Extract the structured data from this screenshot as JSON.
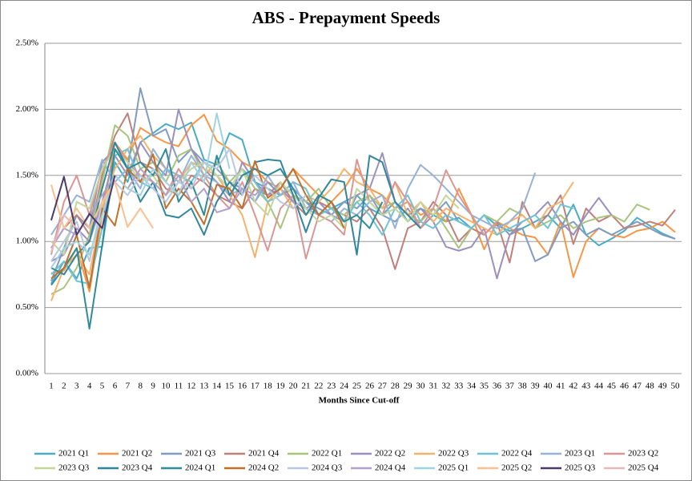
{
  "chart_data": {
    "type": "line",
    "title": "ABS - Prepayment Speeds",
    "x_label": "Months Since Cut-off",
    "categories": [
      1,
      2,
      3,
      4,
      5,
      6,
      7,
      8,
      9,
      10,
      11,
      12,
      13,
      14,
      15,
      16,
      17,
      18,
      19,
      20,
      21,
      22,
      23,
      24,
      25,
      26,
      27,
      28,
      29,
      30,
      31,
      32,
      33,
      34,
      35,
      36,
      37,
      38,
      39,
      40,
      41,
      42,
      43,
      44,
      45,
      46,
      47,
      48,
      49,
      50
    ],
    "ylim": [
      0,
      2.5
    ],
    "yticks": [
      {
        "value": 0,
        "label": "0.00%"
      },
      {
        "value": 0.5,
        "label": "0.50%"
      },
      {
        "value": 1,
        "label": "1.00%"
      },
      {
        "value": 1.5,
        "label": "1.50%"
      },
      {
        "value": 2,
        "label": "2.00%"
      },
      {
        "value": 2.5,
        "label": "2.50%"
      }
    ],
    "grid": true,
    "legend": "bottom",
    "series": [
      {
        "name": "2021 Q1",
        "color": "#4bacc6",
        "values": [
          0.68,
          0.85,
          0.72,
          0.95,
          0.96,
          1.6,
          1.45,
          1.75,
          1.82,
          1.89,
          1.85,
          1.9,
          1.62,
          1.58,
          1.82,
          1.77,
          1.45,
          1.4,
          1.35,
          1.4,
          1.3,
          1.2,
          1.25,
          1.3,
          1.35,
          1.25,
          1.2,
          1.3,
          1.15,
          1.25,
          1.2,
          1.15,
          1.18,
          1.1,
          1.2,
          1.12,
          1.08,
          1.1,
          1.15,
          1.2,
          1.1,
          1.28,
          1.05,
          0.97,
          1.02,
          1.08,
          1.18,
          1.12,
          1.06,
          1.02
        ]
      },
      {
        "name": "2021 Q2",
        "color": "#f79646",
        "values": [
          0.76,
          0.78,
          0.95,
          0.62,
          1.2,
          1.75,
          1.62,
          1.86,
          1.8,
          1.75,
          1.72,
          1.88,
          1.96,
          1.76,
          1.7,
          1.6,
          1.55,
          1.45,
          1.4,
          1.55,
          1.45,
          1.35,
          1.3,
          1.4,
          1.55,
          1.4,
          1.35,
          1.25,
          1.3,
          1.2,
          1.25,
          1.15,
          1.4,
          1.2,
          0.94,
          1.15,
          1.1,
          1.05,
          1.03,
          0.9,
          1.15,
          0.73,
          1.0,
          1.1,
          1.05,
          1.03,
          1.08,
          1.1,
          1.15,
          1.07
        ]
      },
      {
        "name": "2021 Q3",
        "color": "#7f9bc2",
        "values": [
          0.7,
          0.95,
          1.2,
          1.1,
          1.6,
          1.7,
          1.55,
          2.16,
          1.8,
          1.85,
          1.6,
          1.7,
          1.6,
          1.55,
          1.45,
          1.4,
          1.3,
          1.45,
          1.35,
          1.4,
          1.3,
          1.25,
          1.2,
          1.3,
          1.25,
          1.35,
          1.2,
          1.15,
          1.25,
          1.1,
          1.2,
          1.3,
          1.15,
          1.1,
          1.2,
          1.15,
          1.05,
          1.1,
          0.85,
          0.9,
          1.1,
          1.15,
          1.05,
          1.1,
          1.05,
          1.1,
          1.15,
          1.1,
          1.05,
          1.02
        ]
      },
      {
        "name": "2021 Q4",
        "color": "#c0807a",
        "values": [
          0.95,
          1.1,
          1.2,
          1.05,
          1.5,
          1.8,
          1.97,
          1.6,
          1.55,
          1.4,
          1.35,
          1.5,
          1.45,
          1.35,
          1.3,
          1.25,
          1.4,
          1.35,
          1.45,
          1.3,
          1.2,
          1.3,
          1.25,
          1.2,
          1.15,
          1.25,
          1.1,
          0.79,
          1.1,
          1.15,
          1.3,
          1.2,
          1.0,
          1.1,
          1.05,
          1.15,
          0.84,
          1.3,
          1.1,
          1.2,
          1.35,
          0.98,
          1.25,
          1.15,
          1.2,
          1.1,
          1.12,
          1.15,
          1.12,
          1.24
        ]
      },
      {
        "name": "2022 Q1",
        "color": "#a9c47f",
        "values": [
          0.6,
          0.65,
          0.8,
          1.05,
          1.45,
          1.88,
          1.8,
          1.55,
          1.6,
          1.45,
          1.65,
          1.7,
          1.5,
          1.6,
          1.45,
          1.55,
          1.4,
          1.3,
          1.1,
          1.35,
          1.3,
          1.4,
          1.25,
          1.2,
          1.3,
          1.35,
          1.25,
          1.3,
          1.2,
          1.15,
          1.25,
          1.1,
          0.95,
          1.1,
          1.2,
          1.15,
          1.25,
          1.2,
          1.1,
          1.15,
          1.2,
          1.1,
          1.15,
          1.18,
          1.2,
          1.15,
          1.28,
          1.24,
          null,
          null
        ]
      },
      {
        "name": "2022 Q2",
        "color": "#9b8fbf",
        "values": [
          0.85,
          0.9,
          1.1,
          1.0,
          1.3,
          1.65,
          1.5,
          1.75,
          1.6,
          1.5,
          2.0,
          1.7,
          1.55,
          1.45,
          1.3,
          1.6,
          1.45,
          1.35,
          1.4,
          1.3,
          1.25,
          1.3,
          1.2,
          1.15,
          1.35,
          1.4,
          1.67,
          1.3,
          1.2,
          1.25,
          1.15,
          0.96,
          0.93,
          0.96,
          1.1,
          0.72,
          1.05,
          1.15,
          1.2,
          1.3,
          1.15,
          1.05,
          1.2,
          1.33,
          1.2,
          null,
          null,
          null,
          null,
          null
        ]
      },
      {
        "name": "2022 Q3",
        "color": "#f6b26b",
        "values": [
          0.55,
          0.8,
          0.9,
          0.75,
          1.25,
          1.55,
          1.7,
          1.8,
          1.65,
          1.55,
          1.45,
          1.6,
          1.55,
          1.5,
          1.35,
          1.2,
          0.88,
          1.3,
          1.4,
          1.25,
          1.35,
          1.3,
          1.4,
          1.55,
          1.45,
          1.4,
          1.25,
          1.45,
          1.2,
          1.3,
          1.15,
          1.25,
          1.2,
          1.15,
          1.1,
          1.05,
          1.15,
          1.2,
          1.1,
          1.25,
          1.3,
          1.45,
          null,
          null,
          null,
          null,
          null,
          null,
          null,
          null
        ]
      },
      {
        "name": "2022 Q4",
        "color": "#6ec4d4",
        "values": [
          0.75,
          0.85,
          0.7,
          0.68,
          1.1,
          1.65,
          1.7,
          1.45,
          1.4,
          1.55,
          1.5,
          1.45,
          1.6,
          1.5,
          1.4,
          1.55,
          1.45,
          1.3,
          1.35,
          1.45,
          1.4,
          1.2,
          1.25,
          1.15,
          1.3,
          1.2,
          1.05,
          1.25,
          1.35,
          1.15,
          1.1,
          1.2,
          1.15,
          1.1,
          1.2,
          1.05,
          1.1,
          1.15,
          1.2,
          1.1,
          1.28,
          1.25,
          null,
          null,
          null,
          null,
          null,
          null,
          null,
          null
        ]
      },
      {
        "name": "2023 Q1",
        "color": "#95b3d7",
        "values": [
          1.05,
          1.2,
          1.35,
          1.3,
          1.62,
          1.45,
          1.55,
          1.4,
          1.7,
          1.55,
          1.45,
          1.65,
          1.5,
          1.45,
          1.35,
          1.4,
          1.3,
          1.5,
          1.35,
          1.45,
          1.25,
          1.2,
          1.15,
          1.25,
          1.2,
          1.3,
          1.35,
          1.1,
          1.4,
          1.58,
          1.5,
          1.4,
          1.3,
          1.2,
          1.15,
          1.1,
          1.15,
          1.25,
          1.52,
          null,
          null,
          null,
          null,
          null,
          null,
          null,
          null,
          null,
          null,
          null
        ]
      },
      {
        "name": "2023 Q2",
        "color": "#d99694",
        "values": [
          0.9,
          1.3,
          1.5,
          1.2,
          1.55,
          1.75,
          1.6,
          1.5,
          1.45,
          1.35,
          1.55,
          1.4,
          1.5,
          1.35,
          1.25,
          1.45,
          1.2,
          0.93,
          1.25,
          1.35,
          0.87,
          1.2,
          1.15,
          1.05,
          1.62,
          1.3,
          1.2,
          1.45,
          1.3,
          1.1,
          1.25,
          1.54,
          1.35,
          1.2,
          1.05,
          1.15,
          null,
          null,
          null,
          null,
          null,
          null,
          null,
          null,
          null,
          null,
          null,
          null,
          null,
          null
        ]
      },
      {
        "name": "2023 Q3",
        "color": "#c3d69b",
        "values": [
          1.0,
          0.9,
          1.3,
          1.25,
          1.55,
          1.7,
          1.6,
          1.45,
          1.5,
          1.35,
          1.45,
          1.55,
          1.6,
          1.5,
          1.4,
          1.55,
          1.3,
          1.2,
          1.45,
          1.35,
          1.25,
          1.15,
          1.2,
          1.1,
          1.4,
          1.3,
          1.2,
          1.25,
          1.15,
          1.3,
          1.2,
          1.35,
          1.25,
          null,
          null,
          null,
          null,
          null,
          null,
          null,
          null,
          null,
          null,
          null,
          null,
          null,
          null,
          null,
          null,
          null
        ]
      },
      {
        "name": "2023 Q4",
        "color": "#31859c",
        "values": [
          0.8,
          0.75,
          0.9,
          1.0,
          1.4,
          1.75,
          1.55,
          1.3,
          1.45,
          1.2,
          1.18,
          1.25,
          1.05,
          1.3,
          1.45,
          1.35,
          1.6,
          1.62,
          1.61,
          1.35,
          1.07,
          1.33,
          1.47,
          1.45,
          0.9,
          1.65,
          1.6,
          1.3,
          1.2,
          1.1,
          null,
          null,
          null,
          null,
          null,
          null,
          null,
          null,
          null,
          null,
          null,
          null,
          null,
          null,
          null,
          null,
          null,
          null,
          null,
          null
        ]
      },
      {
        "name": "2024 Q1",
        "color": "#2e8b9a",
        "values": [
          0.67,
          0.8,
          0.95,
          0.34,
          0.97,
          1.7,
          1.55,
          1.6,
          1.5,
          1.7,
          1.3,
          1.45,
          1.2,
          1.65,
          1.35,
          1.5,
          1.55,
          1.5,
          1.55,
          1.4,
          1.2,
          1.35,
          1.3,
          1.15,
          1.2,
          1.1,
          1.3,
          null,
          null,
          null,
          null,
          null,
          null,
          null,
          null,
          null,
          null,
          null,
          null,
          null,
          null,
          null,
          null,
          null,
          null,
          null,
          null,
          null,
          null,
          null
        ]
      },
      {
        "name": "2024 Q2",
        "color": "#c0702a",
        "values": [
          0.72,
          0.8,
          1.05,
          0.65,
          1.25,
          1.12,
          1.55,
          1.45,
          1.66,
          1.25,
          1.4,
          1.3,
          1.13,
          1.43,
          1.4,
          1.25,
          1.61,
          1.33,
          1.4,
          1.55,
          1.35,
          1.2,
          1.3,
          1.1,
          null,
          null,
          null,
          null,
          null,
          null,
          null,
          null,
          null,
          null,
          null,
          null,
          null,
          null,
          null,
          null,
          null,
          null,
          null,
          null,
          null,
          null,
          null,
          null,
          null,
          null
        ]
      },
      {
        "name": "2024 Q3",
        "color": "#b9c7e0",
        "values": [
          0.85,
          1.0,
          1.15,
          0.85,
          1.3,
          1.45,
          1.35,
          1.5,
          1.4,
          1.3,
          1.45,
          1.4,
          1.6,
          1.55,
          1.7,
          1.35,
          1.5,
          1.4,
          1.3,
          1.25,
          1.35,
          null,
          null,
          null,
          null,
          null,
          null,
          null,
          null,
          null,
          null,
          null,
          null,
          null,
          null,
          null,
          null,
          null,
          null,
          null,
          null,
          null,
          null,
          null,
          null,
          null,
          null,
          null,
          null,
          null
        ]
      },
      {
        "name": "2024 Q4",
        "color": "#b2a1c7",
        "values": [
          0.95,
          1.1,
          1.05,
          1.2,
          1.35,
          1.5,
          1.4,
          1.55,
          1.45,
          1.35,
          1.5,
          1.3,
          1.4,
          1.22,
          1.25,
          1.4,
          1.35,
          1.45,
          null,
          null,
          null,
          null,
          null,
          null,
          null,
          null,
          null,
          null,
          null,
          null,
          null,
          null,
          null,
          null,
          null,
          null,
          null,
          null,
          null,
          null,
          null,
          null,
          null,
          null,
          null,
          null,
          null,
          null,
          null,
          null
        ]
      },
      {
        "name": "2025 Q1",
        "color": "#9fd3e0",
        "values": [
          0.8,
          0.95,
          1.0,
          0.9,
          1.2,
          1.5,
          1.4,
          1.35,
          1.55,
          1.45,
          1.35,
          1.6,
          1.45,
          1.97,
          1.55,
          null,
          null,
          null,
          null,
          null,
          null,
          null,
          null,
          null,
          null,
          null,
          null,
          null,
          null,
          null,
          null,
          null,
          null,
          null,
          null,
          null,
          null,
          null,
          null,
          null,
          null,
          null,
          null,
          null,
          null,
          null,
          null,
          null,
          null,
          null
        ]
      },
      {
        "name": "2025 Q2",
        "color": "#fac090",
        "values": [
          1.43,
          1.1,
          1.25,
          1.1,
          1.3,
          1.45,
          1.11,
          1.25,
          1.1,
          null,
          null,
          null,
          null,
          null,
          null,
          null,
          null,
          null,
          null,
          null,
          null,
          null,
          null,
          null,
          null,
          null,
          null,
          null,
          null,
          null,
          null,
          null,
          null,
          null,
          null,
          null,
          null,
          null,
          null,
          null,
          null,
          null,
          null,
          null,
          null,
          null,
          null,
          null,
          null,
          null
        ]
      },
      {
        "name": "2025 Q3",
        "color": "#4b3a6b",
        "values": [
          1.16,
          1.49,
          1.05,
          1.21,
          1.1,
          1.5,
          null,
          null,
          null,
          null,
          null,
          null,
          null,
          null,
          null,
          null,
          null,
          null,
          null,
          null,
          null,
          null,
          null,
          null,
          null,
          null,
          null,
          null,
          null,
          null,
          null,
          null,
          null,
          null,
          null,
          null,
          null,
          null,
          null,
          null,
          null,
          null,
          null,
          null,
          null,
          null,
          null,
          null,
          null,
          null
        ]
      },
      {
        "name": "2025 Q4",
        "color": "#e6b9b8",
        "values": [
          0.92,
          1.2,
          1.1,
          null,
          null,
          null,
          null,
          null,
          null,
          null,
          null,
          null,
          null,
          null,
          null,
          null,
          null,
          null,
          null,
          null,
          null,
          null,
          null,
          null,
          null,
          null,
          null,
          null,
          null,
          null,
          null,
          null,
          null,
          null,
          null,
          null,
          null,
          null,
          null,
          null,
          null,
          null,
          null,
          null,
          null,
          null,
          null,
          null,
          null,
          null
        ]
      }
    ]
  }
}
